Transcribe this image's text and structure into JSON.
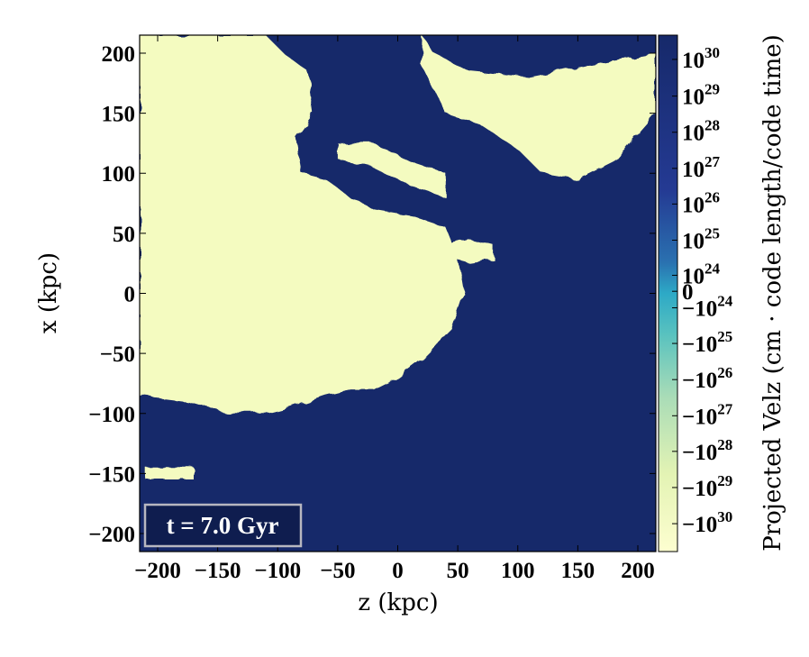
{
  "chart_data": {
    "type": "heatmap",
    "title": "",
    "xlabel": "z  (kpc)",
    "ylabel": "x  (kpc)",
    "xlim": [
      -215,
      215
    ],
    "ylim": [
      -215,
      215
    ],
    "x_ticks": [
      {
        "value": -200,
        "label": "−200"
      },
      {
        "value": -150,
        "label": "−150"
      },
      {
        "value": -100,
        "label": "−100"
      },
      {
        "value": -50,
        "label": "−50"
      },
      {
        "value": 0,
        "label": "0"
      },
      {
        "value": 50,
        "label": "50"
      },
      {
        "value": 100,
        "label": "100"
      },
      {
        "value": 150,
        "label": "150"
      },
      {
        "value": 200,
        "label": "200"
      }
    ],
    "y_ticks": [
      {
        "value": 200,
        "label": "200"
      },
      {
        "value": 150,
        "label": "150"
      },
      {
        "value": 100,
        "label": "100"
      },
      {
        "value": 50,
        "label": "50"
      },
      {
        "value": 0,
        "label": "0"
      },
      {
        "value": -50,
        "label": "−50"
      },
      {
        "value": -100,
        "label": "−100"
      },
      {
        "value": -150,
        "label": "−150"
      },
      {
        "value": -200,
        "label": "−200"
      }
    ],
    "colorbar": {
      "label": "Projected Velz  (cm · code length/code time)",
      "scale": "symlog",
      "colormap": "YlGnBu (light yellow = negative, dark blue = positive)",
      "ticks": [
        {
          "base": "10",
          "exp": "30",
          "frac": 0.047
        },
        {
          "base": "10",
          "exp": "29",
          "frac": 0.118
        },
        {
          "base": "10",
          "exp": "28",
          "frac": 0.188
        },
        {
          "base": "10",
          "exp": "27",
          "frac": 0.258
        },
        {
          "base": "10",
          "exp": "26",
          "frac": 0.327
        },
        {
          "base": "10",
          "exp": "25",
          "frac": 0.397
        },
        {
          "base": "10",
          "exp": "24",
          "frac": 0.465
        },
        {
          "base": "0",
          "exp": "",
          "frac": 0.496
        },
        {
          "base": "−10",
          "exp": "24",
          "frac": 0.528
        },
        {
          "base": "−10",
          "exp": "25",
          "frac": 0.597
        },
        {
          "base": "−10",
          "exp": "26",
          "frac": 0.667
        },
        {
          "base": "−10",
          "exp": "27",
          "frac": 0.737
        },
        {
          "base": "−10",
          "exp": "28",
          "frac": 0.806
        },
        {
          "base": "−10",
          "exp": "29",
          "frac": 0.876
        },
        {
          "base": "−10",
          "exp": "30",
          "frac": 0.946
        }
      ]
    },
    "regions": {
      "description_values": "two-valued field: positive (dark navy) vs negative (pale yellow)",
      "negative_patches": [
        {
          "z": [
            -215,
            -110,
            -95,
            -75,
            -70,
            -85,
            -80,
            -60,
            -40,
            -20,
            10,
            40,
            50,
            55,
            45,
            20,
            0,
            -20,
            -40,
            -60,
            -90,
            -110,
            -140,
            -175,
            -215
          ],
          "x": [
            215,
            215,
            200,
            185,
            150,
            130,
            100,
            95,
            80,
            70,
            65,
            55,
            30,
            0,
            -30,
            -55,
            -70,
            -80,
            -80,
            -85,
            -95,
            -100,
            -100,
            -90,
            -85
          ]
        },
        {
          "z": [
            20,
            30,
            60,
            110,
            160,
            215,
            215,
            180,
            150,
            120,
            100,
            70,
            40,
            30,
            20
          ],
          "x": [
            215,
            200,
            185,
            180,
            190,
            200,
            150,
            110,
            95,
            100,
            120,
            140,
            150,
            170,
            190
          ]
        },
        {
          "z": [
            -50,
            -20,
            10,
            40,
            40,
            10,
            -20,
            -50
          ],
          "x": [
            125,
            125,
            110,
            100,
            80,
            90,
            105,
            112
          ]
        },
        {
          "z": [
            40,
            60,
            80,
            80,
            60,
            40
          ],
          "x": [
            40,
            45,
            40,
            28,
            25,
            30
          ]
        },
        {
          "z": [
            -210,
            -170,
            -170,
            -210
          ],
          "x": [
            -145,
            -145,
            -155,
            -155
          ]
        }
      ]
    },
    "annotation": "t = 7.0 Gyr",
    "colors": {
      "positive": "#16296a",
      "negative": "#f4fbc0",
      "annotation_bg": "#0f1d4f",
      "annotation_border": "#b7b7c0"
    }
  }
}
